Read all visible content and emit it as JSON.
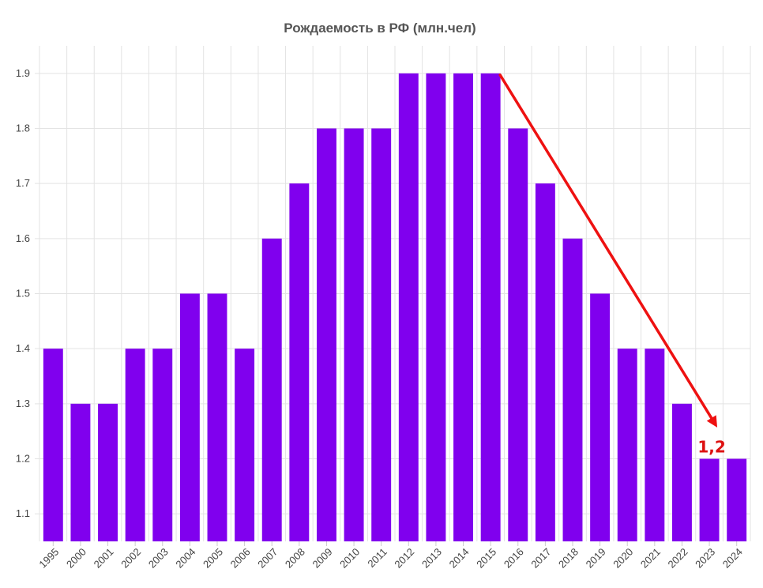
{
  "colors": {
    "bar": "#8000ee",
    "arrow": "#ee1111",
    "annotation": "#dd1111",
    "grid": "#e3e3e3",
    "title": "#555555"
  },
  "chart_data": {
    "type": "bar",
    "title": "Рождаемость в РФ (млн.чел)",
    "xlabel": "",
    "ylabel": "",
    "ylim": [
      1.05,
      1.95
    ],
    "yticks": [
      "1.1",
      "1.2",
      "1.3",
      "1.4",
      "1.5",
      "1.6",
      "1.7",
      "1.8",
      "1.9"
    ],
    "grid": true,
    "categories": [
      "1995",
      "2000",
      "2001",
      "2002",
      "2003",
      "2004",
      "2005",
      "2006",
      "2007",
      "2008",
      "2009",
      "2010",
      "2011",
      "2012",
      "2013",
      "2014",
      "2015",
      "2016",
      "2017",
      "2018",
      "2019",
      "2020",
      "2021",
      "2022",
      "2023",
      "2024"
    ],
    "values": [
      1.4,
      1.3,
      1.3,
      1.4,
      1.4,
      1.5,
      1.5,
      1.4,
      1.6,
      1.7,
      1.8,
      1.8,
      1.8,
      1.9,
      1.9,
      1.9,
      1.9,
      1.8,
      1.7,
      1.6,
      1.5,
      1.4,
      1.4,
      1.3,
      1.2,
      1.2
    ],
    "annotations": [
      {
        "text": "1,2",
        "category": "2023",
        "value": 1.2
      }
    ],
    "trend_arrow": {
      "from": {
        "category": "2015",
        "value": 1.9
      },
      "to": {
        "category": "2023",
        "value": 1.3
      }
    }
  }
}
